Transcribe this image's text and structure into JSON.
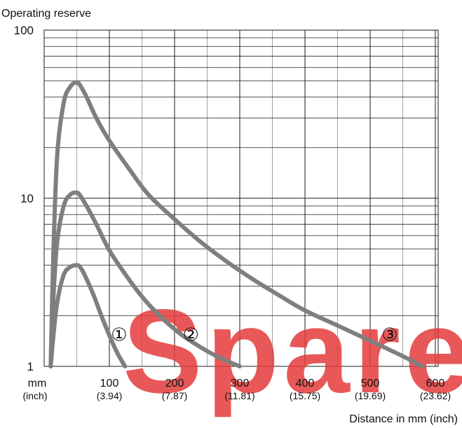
{
  "chart_data": {
    "type": "line",
    "ylabel": "Operating reserve",
    "xlabel": "Distance in mm (inch)",
    "yscale": "log",
    "ylim": [
      1,
      100
    ],
    "xlim": [
      0,
      600
    ],
    "grid": true,
    "y_ticks": [
      {
        "value": 1,
        "label": "1"
      },
      {
        "value": 10,
        "label": "10"
      },
      {
        "value": 100,
        "label": "100"
      }
    ],
    "x_unit_labels": {
      "primary": "mm",
      "secondary": "(inch)"
    },
    "x_ticks": [
      {
        "value": 100,
        "label": "100",
        "sub": "(3.94)"
      },
      {
        "value": 200,
        "label": "200",
        "sub": "(7.87)"
      },
      {
        "value": 300,
        "label": "300",
        "sub": "(11.81)"
      },
      {
        "value": 400,
        "label": "400",
        "sub": "(15.75)"
      },
      {
        "value": 500,
        "label": "500",
        "sub": "(19.69)"
      },
      {
        "value": 600,
        "label": "600",
        "sub": "(23.62)"
      }
    ],
    "series": [
      {
        "marker": "①",
        "marker_at": [
          115,
          1.55
        ],
        "x": [
          10,
          14,
          20,
          30,
          40,
          50,
          55,
          62,
          75,
          90,
          110,
          124
        ],
        "y": [
          1.0,
          1.5,
          2.4,
          3.5,
          3.9,
          4.0,
          3.9,
          3.5,
          2.7,
          1.9,
          1.25,
          1.0
        ]
      },
      {
        "marker": "②",
        "marker_at": [
          225,
          1.55
        ],
        "x": [
          10,
          14,
          20,
          30,
          40,
          50,
          55,
          65,
          80,
          100,
          125,
          150,
          180,
          210,
          240,
          270,
          300
        ],
        "y": [
          1.0,
          2.5,
          5.5,
          9.0,
          10.5,
          10.8,
          10.4,
          9.0,
          7.0,
          4.9,
          3.5,
          2.6,
          1.95,
          1.55,
          1.3,
          1.12,
          1.0
        ]
      },
      {
        "marker": "③",
        "marker_at": [
          530,
          1.55
        ],
        "x": [
          10,
          14,
          20,
          30,
          40,
          50,
          55,
          65,
          80,
          100,
          130,
          160,
          200,
          240,
          280,
          320,
          360,
          400,
          450,
          500,
          550,
          580
        ],
        "y": [
          1.0,
          4.5,
          18,
          37,
          46,
          49,
          47,
          40,
          30,
          22,
          15,
          10.5,
          7.5,
          5.5,
          4.2,
          3.3,
          2.65,
          2.15,
          1.75,
          1.42,
          1.15,
          1.0
        ]
      }
    ],
    "colors": {
      "line": "#7f7f7f",
      "grid": "#1a1a1a",
      "marker": "#111111"
    }
  },
  "watermark": {
    "text": "Spare",
    "color": "#e53b3b"
  }
}
